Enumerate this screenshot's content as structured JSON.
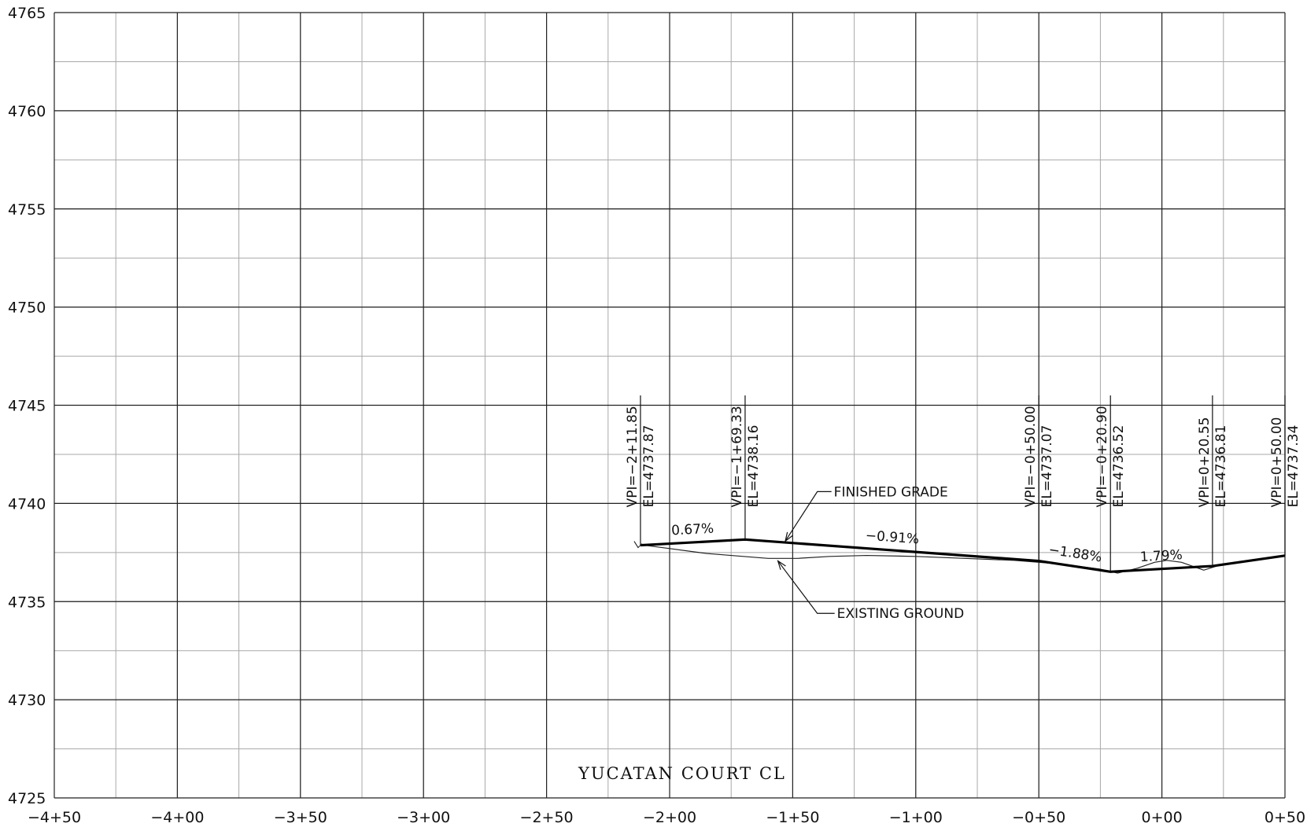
{
  "chart_data": {
    "type": "line",
    "title": "YUCATAN COURT CL",
    "x_units": "station_ft",
    "xlim": [
      -450,
      50
    ],
    "ylim": [
      4725,
      4765
    ],
    "x_ticks": [
      {
        "v": -450,
        "label": "-4+50"
      },
      {
        "v": -400,
        "label": "-4+00"
      },
      {
        "v": -350,
        "label": "-3+50"
      },
      {
        "v": -300,
        "label": "-3+00"
      },
      {
        "v": -250,
        "label": "-2+50"
      },
      {
        "v": -200,
        "label": "-2+00"
      },
      {
        "v": -150,
        "label": "-1+50"
      },
      {
        "v": -100,
        "label": "-1+00"
      },
      {
        "v": -50,
        "label": "-0+50"
      },
      {
        "v": 0,
        "label": "0+00"
      },
      {
        "v": 50,
        "label": "0+50"
      }
    ],
    "x_minor_step": 25,
    "y_major": [
      {
        "v": 4725,
        "label": "4725"
      },
      {
        "v": 4730,
        "label": "4730"
      },
      {
        "v": 4735,
        "label": "4735"
      },
      {
        "v": 4740,
        "label": "4740"
      },
      {
        "v": 4745,
        "label": "4745"
      },
      {
        "v": 4750,
        "label": "4750"
      },
      {
        "v": 4755,
        "label": "4755"
      },
      {
        "v": 4760,
        "label": "4760"
      },
      {
        "v": 4765,
        "label": "4765"
      }
    ],
    "y_minor_step": 2.5,
    "series": [
      {
        "name": "FINISHED GRADE",
        "points": [
          [
            -211.85,
            4737.87
          ],
          [
            -169.33,
            4738.16
          ],
          [
            -50.0,
            4737.07
          ],
          [
            -20.9,
            4736.52
          ],
          [
            20.55,
            4736.81
          ],
          [
            50.0,
            4737.34
          ]
        ]
      },
      {
        "name": "EXISTING GROUND",
        "points": [
          [
            -212,
            4737.9
          ],
          [
            -200,
            4737.7
          ],
          [
            -185,
            4737.45
          ],
          [
            -170,
            4737.3
          ],
          [
            -160,
            4737.2
          ],
          [
            -148,
            4737.2
          ],
          [
            -135,
            4737.3
          ],
          [
            -120,
            4737.35
          ],
          [
            -100,
            4737.3
          ],
          [
            -80,
            4737.2
          ],
          [
            -60,
            4737.1
          ],
          [
            -40,
            4736.9
          ],
          [
            -25,
            4736.65
          ],
          [
            -18,
            4736.45
          ],
          [
            -10,
            4736.7
          ],
          [
            -3,
            4737.0
          ],
          [
            2,
            4737.1
          ],
          [
            8,
            4737.0
          ],
          [
            17,
            4736.6
          ],
          [
            22,
            4736.8
          ]
        ]
      }
    ],
    "vpis": [
      {
        "x": -211.85,
        "y": 4737.87,
        "vpi": "VPI=-2+11.85",
        "el": "EL=4737.87"
      },
      {
        "x": -169.33,
        "y": 4738.16,
        "vpi": "VPI=-1+69.33",
        "el": "EL=4738.16"
      },
      {
        "x": -50.0,
        "y": 4737.07,
        "vpi": "VPI=-0+50.00",
        "el": "EL=4737.07"
      },
      {
        "x": -20.9,
        "y": 4736.52,
        "vpi": "VPI=-0+20.90",
        "el": "EL=4736.52"
      },
      {
        "x": 20.55,
        "y": 4736.81,
        "vpi": "VPI=0+20.55",
        "el": "EL=4736.81"
      },
      {
        "x": 50.0,
        "y": 4737.34,
        "vpi": "VPI=0+50.00",
        "el": "EL=4737.34"
      }
    ],
    "grades": [
      "0.67%",
      "-0.91%",
      "-1.88%",
      "1.79%"
    ],
    "callouts": {
      "finished_grade": "FINISHED GRADE",
      "existing_ground": "EXISTING GROUND"
    }
  }
}
